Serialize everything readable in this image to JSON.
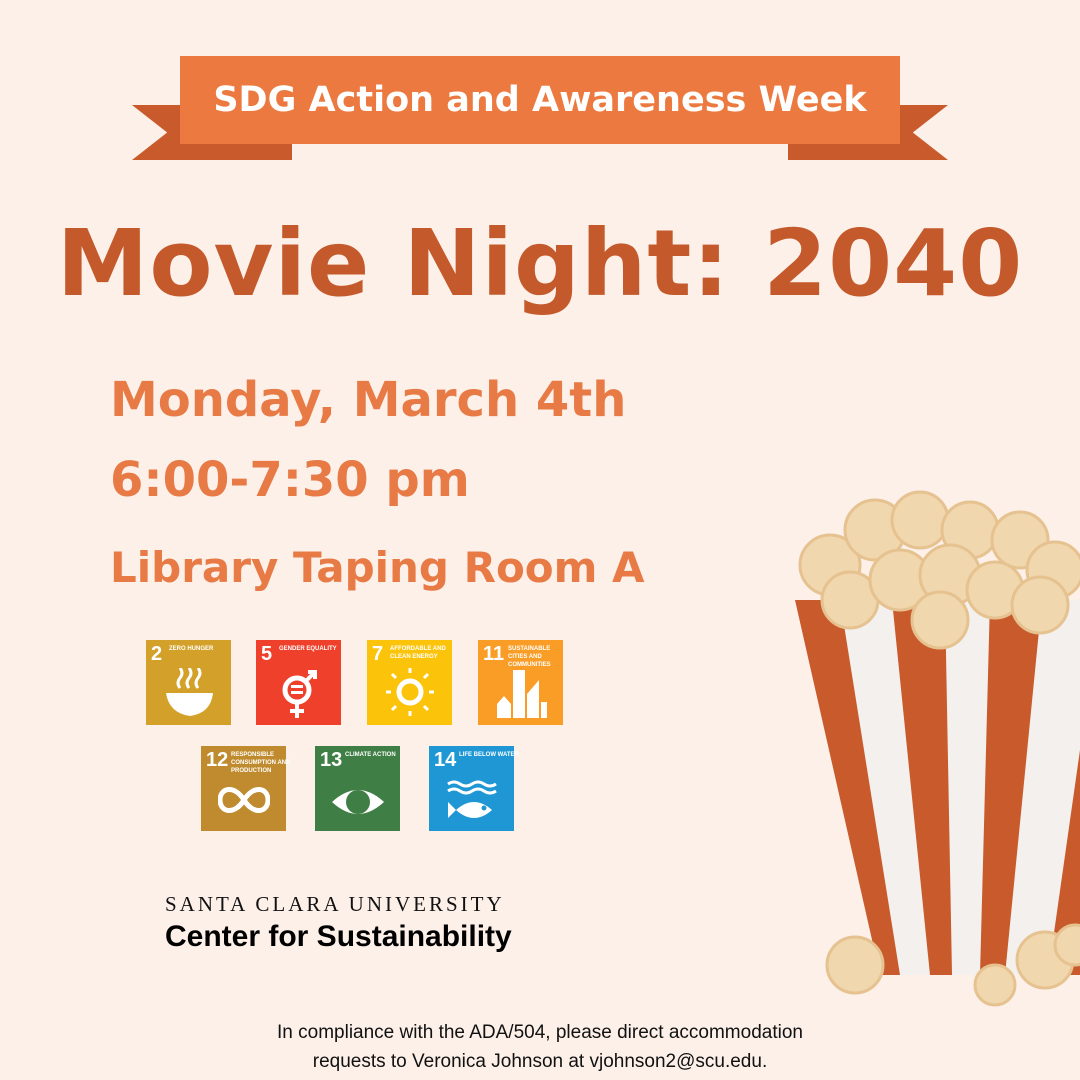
{
  "banner": {
    "text": "SDG Action and Awareness Week"
  },
  "title": "Movie Night: 2040",
  "event": {
    "date": "Monday, March 4th",
    "time": "6:00-7:30 pm",
    "location": "Library Taping Room A"
  },
  "sdgs": [
    {
      "num": "2",
      "label": "ZERO HUNGER",
      "color": "#d3a029",
      "icon": "bowl-icon"
    },
    {
      "num": "5",
      "label": "GENDER EQUALITY",
      "color": "#ef402b",
      "icon": "gender-equality-icon"
    },
    {
      "num": "7",
      "label": "AFFORDABLE AND CLEAN ENERGY",
      "color": "#fbc30a",
      "icon": "sun-power-icon"
    },
    {
      "num": "11",
      "label": "SUSTAINABLE CITIES AND COMMUNITIES",
      "color": "#f99d26",
      "icon": "city-icon"
    },
    {
      "num": "12",
      "label": "RESPONSIBLE CONSUMPTION AND PRODUCTION",
      "color": "#bf8b2e",
      "icon": "infinity-icon"
    },
    {
      "num": "13",
      "label": "CLIMATE ACTION",
      "color": "#3f7e44",
      "icon": "eye-globe-icon"
    },
    {
      "num": "14",
      "label": "LIFE BELOW WATER",
      "color": "#1f97d4",
      "icon": "fish-icon"
    }
  ],
  "org": {
    "university": "SANTA CLARA UNIVERSITY",
    "center": "Center for Sustainability"
  },
  "ada": {
    "line1": "In compliance with the ADA/504, please direct accommodation",
    "line2": "requests to Veronica Johnson at vjohnson2@scu.edu."
  },
  "colors": {
    "background": "#fcf0e9",
    "banner": "#ec7a40",
    "title": "#c45a2b",
    "info": "#e77a45"
  }
}
